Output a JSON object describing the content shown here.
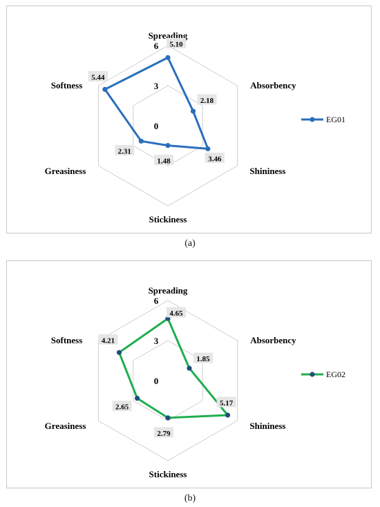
{
  "chart_data": [
    {
      "type": "radar",
      "axes": [
        "Spreading",
        "Absorbency",
        "Shininess",
        "Stickiness",
        "Greasiness",
        "Softness"
      ],
      "rlim": [
        0,
        6
      ],
      "ticks": [
        0,
        3,
        6
      ],
      "tick_labels": [
        "0",
        "3",
        "6"
      ],
      "grid": true,
      "legend": "right",
      "series": [
        {
          "name": "EG01",
          "values": [
            5.1,
            2.18,
            3.46,
            1.48,
            2.31,
            5.44
          ],
          "labels": [
            "5.10",
            "2.18",
            "3.46",
            "1.48",
            "2.31",
            "5.44"
          ],
          "color": "#2a6ebb",
          "marker_color": "#2a6ebb"
        }
      ],
      "caption": "(a)"
    },
    {
      "type": "radar",
      "axes": [
        "Spreading",
        "Absorbency",
        "Shininess",
        "Stickiness",
        "Greasiness",
        "Softness"
      ],
      "rlim": [
        0,
        6
      ],
      "ticks": [
        0,
        3,
        6
      ],
      "tick_labels": [
        "0",
        "3",
        "6"
      ],
      "grid": true,
      "legend": "right",
      "series": [
        {
          "name": "EG02",
          "values": [
            4.65,
            1.85,
            5.17,
            2.79,
            2.65,
            4.21
          ],
          "labels": [
            "4.65",
            "1.85",
            "5.17",
            "2.79",
            "2.65",
            "4.21"
          ],
          "color": "#1fae4f",
          "marker_color": "#1f4e79"
        }
      ],
      "caption": "(b)"
    }
  ]
}
